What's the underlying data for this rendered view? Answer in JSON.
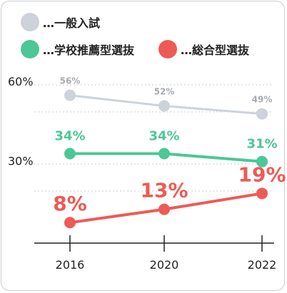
{
  "chart_data": {
    "type": "line",
    "categories": [
      "2016",
      "2020",
      "2022"
    ],
    "x": [
      2016,
      2020,
      2022
    ],
    "ylim": [
      0,
      60
    ],
    "y_ticks": [
      {
        "value": 60,
        "label": "60%"
      },
      {
        "value": 30,
        "label": "30%"
      }
    ],
    "grid": "dashed horizontal lines",
    "legend_position": "top-left",
    "series": [
      {
        "name": "…一般入試",
        "color": "#cdd2db",
        "label_color": "#a7abb1",
        "label_size": "small",
        "values": [
          56,
          52,
          49
        ],
        "labels": [
          "56%",
          "52%",
          "49%"
        ]
      },
      {
        "name": "…学校推薦型選抜",
        "color": "#4cc797",
        "label_color": "#4cc797",
        "label_size": "medium",
        "values": [
          34,
          34,
          31
        ],
        "labels": [
          "34%",
          "34%",
          "31%"
        ]
      },
      {
        "name": "…総合型選抜",
        "color": "#ee5a55",
        "label_color": "#ee5a55",
        "label_size": "large",
        "values": [
          8,
          13,
          19
        ],
        "labels": [
          "8%",
          "13%",
          "19%"
        ]
      }
    ]
  }
}
